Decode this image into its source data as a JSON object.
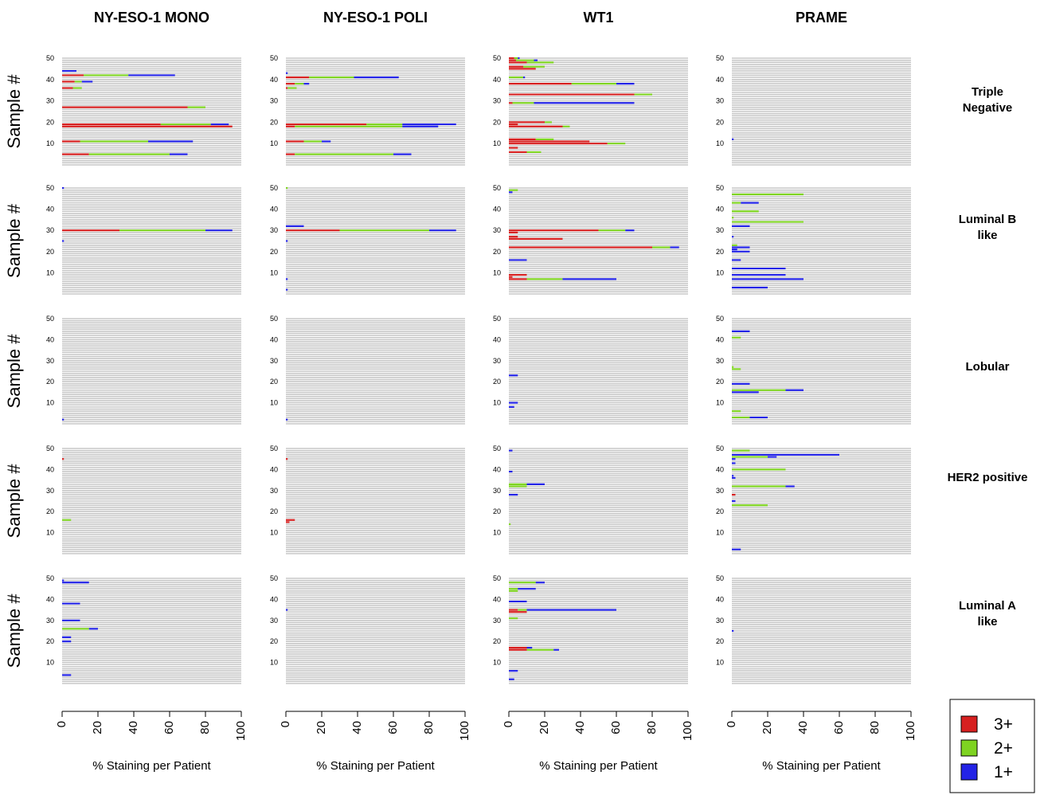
{
  "chart_data": {
    "type": "bar",
    "subtype": "horizontal stacked bar small multiples",
    "columns": [
      "NY-ESO-1 MONO",
      "NY-ESO-1 POLI",
      "WT1",
      "PRAME"
    ],
    "rows": [
      "Triple\nNegative",
      "Luminal B\nlike",
      "Lobular",
      "HER2 positive",
      "Luminal A\nlike"
    ],
    "ylabel": "Sample #",
    "xlabel": "% Staining per Patient",
    "xlim": [
      0,
      100
    ],
    "ylim": [
      0,
      50
    ],
    "xticks": [
      "0",
      "20",
      "40",
      "60",
      "80",
      "100"
    ],
    "yticks": [
      "10",
      "20",
      "30",
      "40",
      "50"
    ],
    "grid": true,
    "legend_position": "bottom-right",
    "legend": [
      {
        "label": "3+",
        "color": "#d62020"
      },
      {
        "label": "2+",
        "color": "#7ed321"
      },
      {
        "label": "1+",
        "color": "#2323e6"
      }
    ],
    "panels": [
      [
        {
          "bars": [
            [
              44,
              0,
              0,
              8
            ],
            [
              42,
              12,
              25,
              26
            ],
            [
              39,
              7,
              4,
              6
            ],
            [
              36,
              6,
              5,
              0
            ],
            [
              27,
              70,
              10,
              0
            ],
            [
              19,
              55,
              28,
              10
            ],
            [
              18,
              95,
              0,
              0
            ],
            [
              11,
              10,
              38,
              25
            ],
            [
              5,
              15,
              45,
              10
            ]
          ]
        },
        {
          "bars": [
            [
              43,
              0,
              0,
              1
            ],
            [
              41,
              13,
              25,
              25
            ],
            [
              38,
              5,
              5,
              3
            ],
            [
              36,
              1,
              5,
              0
            ],
            [
              19,
              45,
              20,
              30
            ],
            [
              18,
              5,
              60,
              20
            ],
            [
              11,
              10,
              10,
              5
            ],
            [
              5,
              5,
              55,
              10
            ]
          ]
        },
        {
          "bars": [
            [
              50,
              3,
              2,
              1
            ],
            [
              49,
              4,
              10,
              2
            ],
            [
              48,
              10,
              15,
              0
            ],
            [
              46,
              8,
              12,
              0
            ],
            [
              45,
              15,
              0,
              0
            ],
            [
              41,
              0,
              8,
              1
            ],
            [
              38,
              35,
              25,
              10
            ],
            [
              33,
              70,
              10,
              0
            ],
            [
              29,
              2,
              12,
              56
            ],
            [
              20,
              20,
              4,
              0
            ],
            [
              19,
              5,
              0,
              0
            ],
            [
              18,
              30,
              4,
              0
            ],
            [
              12,
              15,
              10,
              0
            ],
            [
              11,
              45,
              0,
              0
            ],
            [
              10,
              55,
              10,
              0
            ],
            [
              8,
              5,
              0,
              0
            ],
            [
              6,
              10,
              8,
              0
            ]
          ]
        },
        {
          "bars": [
            [
              12,
              0,
              0,
              1
            ]
          ]
        }
      ],
      [
        {
          "bars": [
            [
              50,
              0,
              0,
              1
            ],
            [
              30,
              32,
              48,
              15
            ],
            [
              25,
              0,
              0,
              1
            ]
          ]
        },
        {
          "bars": [
            [
              50,
              0,
              1,
              0
            ],
            [
              32,
              0,
              0,
              10
            ],
            [
              30,
              30,
              50,
              15
            ],
            [
              25,
              0,
              0,
              1
            ],
            [
              7,
              0,
              0,
              1
            ],
            [
              2,
              0,
              0,
              1
            ]
          ]
        },
        {
          "bars": [
            [
              49,
              0,
              5,
              0
            ],
            [
              48,
              0,
              0,
              2
            ],
            [
              30,
              50,
              15,
              5
            ],
            [
              29,
              5,
              0,
              0
            ],
            [
              27,
              5,
              0,
              0
            ],
            [
              26,
              30,
              0,
              0
            ],
            [
              22,
              80,
              10,
              5
            ],
            [
              16,
              0,
              0,
              10
            ],
            [
              9,
              10,
              0,
              0
            ],
            [
              8,
              2,
              0,
              0
            ],
            [
              7,
              10,
              20,
              30
            ]
          ]
        },
        {
          "bars": [
            [
              47,
              0,
              40,
              0
            ],
            [
              43,
              0,
              5,
              10
            ],
            [
              39,
              0,
              15,
              0
            ],
            [
              36,
              0,
              1,
              0
            ],
            [
              34,
              0,
              40,
              0
            ],
            [
              32,
              0,
              0,
              10
            ],
            [
              27,
              0,
              0,
              1
            ],
            [
              23,
              0,
              3,
              0
            ],
            [
              22,
              0,
              0,
              10
            ],
            [
              21,
              0,
              0,
              3
            ],
            [
              20,
              0,
              0,
              10
            ],
            [
              16,
              0,
              0,
              5
            ],
            [
              12,
              0,
              0,
              30
            ],
            [
              9,
              0,
              0,
              30
            ],
            [
              7,
              0,
              0,
              40
            ],
            [
              3,
              0,
              0,
              20
            ]
          ]
        }
      ],
      [
        {
          "bars": [
            [
              2,
              0,
              0,
              1
            ]
          ]
        },
        {
          "bars": [
            [
              2,
              0,
              0,
              1
            ]
          ]
        },
        {
          "bars": [
            [
              23,
              0,
              0,
              5
            ],
            [
              10,
              0,
              0,
              5
            ],
            [
              8,
              0,
              0,
              3
            ]
          ]
        },
        {
          "bars": [
            [
              44,
              0,
              0,
              10
            ],
            [
              41,
              0,
              5,
              0
            ],
            [
              27,
              0,
              1,
              0
            ],
            [
              26,
              0,
              5,
              0
            ],
            [
              19,
              0,
              0,
              10
            ],
            [
              16,
              0,
              30,
              10
            ],
            [
              15,
              0,
              0,
              15
            ],
            [
              6,
              0,
              5,
              0
            ],
            [
              3,
              0,
              10,
              10
            ]
          ]
        }
      ],
      [
        {
          "bars": [
            [
              45,
              1,
              0,
              0
            ],
            [
              16,
              0,
              5,
              0
            ]
          ]
        },
        {
          "bars": [
            [
              45,
              1,
              0,
              0
            ],
            [
              16,
              5,
              0,
              0
            ],
            [
              15,
              2,
              0,
              0
            ]
          ]
        },
        {
          "bars": [
            [
              49,
              0,
              0,
              2
            ],
            [
              39,
              0,
              0,
              2
            ],
            [
              33,
              0,
              10,
              10
            ],
            [
              32,
              0,
              10,
              0
            ],
            [
              28,
              0,
              0,
              5
            ],
            [
              14,
              0,
              1,
              0
            ]
          ]
        },
        {
          "bars": [
            [
              49,
              0,
              10,
              0
            ],
            [
              47,
              0,
              0,
              60
            ],
            [
              46,
              0,
              20,
              5
            ],
            [
              45,
              0,
              0,
              2
            ],
            [
              43,
              0,
              0,
              2
            ],
            [
              40,
              0,
              30,
              0
            ],
            [
              37,
              0,
              0,
              1
            ],
            [
              36,
              0,
              0,
              2
            ],
            [
              32,
              0,
              30,
              5
            ],
            [
              28,
              2,
              0,
              0
            ],
            [
              25,
              0,
              0,
              2
            ],
            [
              23,
              0,
              20,
              0
            ],
            [
              2,
              0,
              0,
              5
            ]
          ]
        }
      ],
      [
        {
          "bars": [
            [
              49,
              0,
              0,
              1
            ],
            [
              48,
              0,
              0,
              15
            ],
            [
              38,
              0,
              0,
              10
            ],
            [
              30,
              0,
              0,
              10
            ],
            [
              26,
              0,
              15,
              5
            ],
            [
              22,
              0,
              0,
              5
            ],
            [
              20,
              0,
              0,
              5
            ],
            [
              4,
              0,
              0,
              5
            ]
          ]
        },
        {
          "bars": [
            [
              35,
              0,
              0,
              1
            ]
          ]
        },
        {
          "bars": [
            [
              48,
              0,
              15,
              5
            ],
            [
              45,
              0,
              5,
              10
            ],
            [
              44,
              0,
              5,
              0
            ],
            [
              39,
              0,
              0,
              10
            ],
            [
              35,
              5,
              5,
              50
            ],
            [
              34,
              10,
              0,
              0
            ],
            [
              31,
              0,
              5,
              0
            ],
            [
              17,
              10,
              0,
              3
            ],
            [
              16,
              10,
              15,
              3
            ],
            [
              6,
              0,
              0,
              5
            ],
            [
              2,
              0,
              0,
              3
            ]
          ]
        },
        {
          "bars": [
            [
              25,
              0,
              0,
              1
            ]
          ]
        }
      ]
    ]
  }
}
